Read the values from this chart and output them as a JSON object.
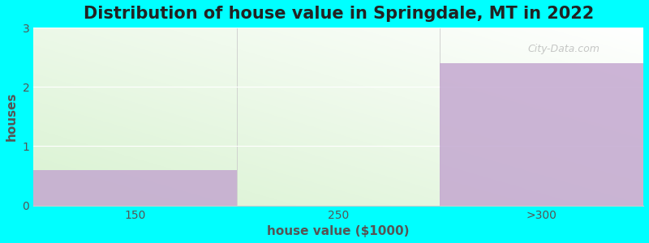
{
  "title": "Distribution of house value in Springdale, MT in 2022",
  "xlabel": "house value ($1000)",
  "ylabel": "houses",
  "categories": [
    "150",
    "250",
    ">300"
  ],
  "values": [
    0.6,
    0,
    2.4
  ],
  "bar_color": "#C4A8D0",
  "ylim": [
    0,
    3
  ],
  "yticks": [
    0,
    1,
    2,
    3
  ],
  "background_color": "#00FFFF",
  "plot_bg_color_topleft": "#FFFFFF",
  "plot_bg_color_bottomleft": "#D8EED0",
  "plot_bg_color_topright": "#FFFFFF",
  "plot_bg_color_bottomright": "#EEFAEA",
  "title_fontsize": 15,
  "axis_label_fontsize": 11,
  "tick_fontsize": 10,
  "watermark": "City-Data.com",
  "fig_width": 8.0,
  "fig_height": 3.0,
  "dpi": 100
}
